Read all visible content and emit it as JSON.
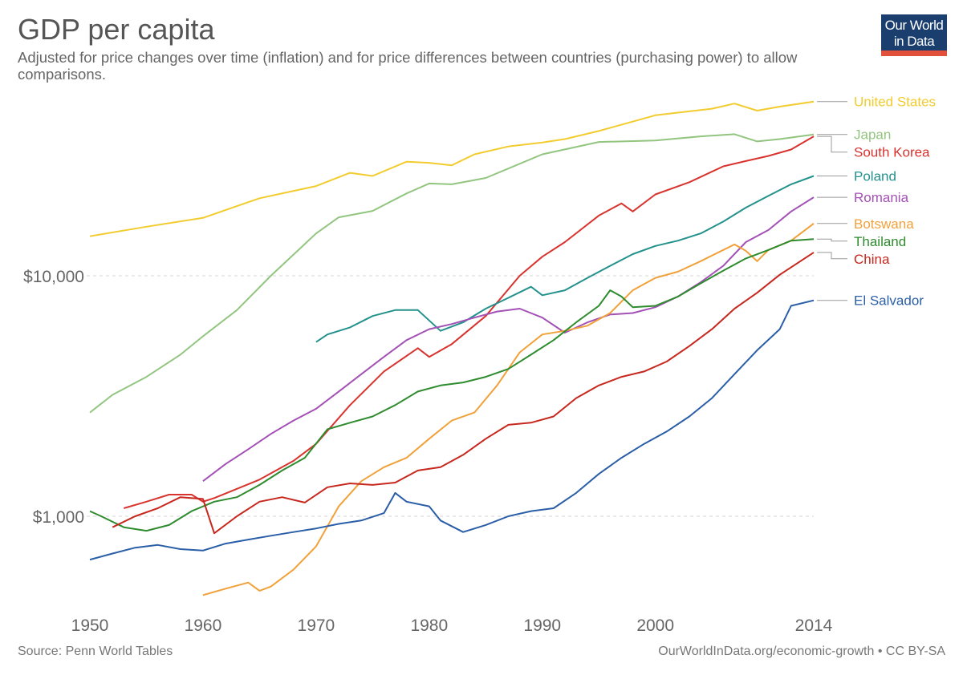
{
  "header": {
    "title": "GDP per capita",
    "subtitle": "Adjusted for price changes over time (inflation) and for price differences between countries (purchasing power) to allow comparisons."
  },
  "logo": {
    "line1": "Our World",
    "line2": "in Data",
    "bg_color": "#1a3e6e",
    "bar_color": "#e0503a"
  },
  "footer": {
    "source": "Source: Penn World Tables",
    "credit": "OurWorldInData.org/economic-growth • CC BY-SA"
  },
  "chart_data": {
    "type": "line",
    "title": "GDP per capita",
    "xlabel": "",
    "ylabel": "",
    "y_scale": "log",
    "xlim": [
      1950,
      2014
    ],
    "ylim": [
      470,
      50000
    ],
    "x_ticks": [
      1950,
      1960,
      1970,
      1980,
      1990,
      2000,
      2014
    ],
    "y_ticks": [
      {
        "value": 1000,
        "label": "$1,000"
      },
      {
        "value": 10000,
        "label": "$10,000"
      }
    ],
    "grid": "horizontal dashed",
    "legend": "right end labels",
    "series": [
      {
        "name": "United States",
        "color": "#f2cc2e",
        "points": [
          [
            1950,
            14600
          ],
          [
            1955,
            16000
          ],
          [
            1960,
            17400
          ],
          [
            1965,
            21000
          ],
          [
            1970,
            23600
          ],
          [
            1973,
            26800
          ],
          [
            1975,
            26000
          ],
          [
            1978,
            29800
          ],
          [
            1980,
            29500
          ],
          [
            1982,
            28800
          ],
          [
            1984,
            32000
          ],
          [
            1987,
            34500
          ],
          [
            1990,
            35800
          ],
          [
            1992,
            37000
          ],
          [
            1995,
            40000
          ],
          [
            2000,
            46500
          ],
          [
            2005,
            49500
          ],
          [
            2007,
            52000
          ],
          [
            2009,
            48600
          ],
          [
            2011,
            50500
          ],
          [
            2014,
            53000
          ]
        ]
      },
      {
        "name": "Japan",
        "color": "#92c57f",
        "points": [
          [
            1950,
            2700
          ],
          [
            1952,
            3200
          ],
          [
            1955,
            3800
          ],
          [
            1958,
            4700
          ],
          [
            1960,
            5600
          ],
          [
            1963,
            7200
          ],
          [
            1966,
            10000
          ],
          [
            1970,
            15000
          ],
          [
            1972,
            17500
          ],
          [
            1975,
            18600
          ],
          [
            1978,
            22000
          ],
          [
            1980,
            24200
          ],
          [
            1982,
            24000
          ],
          [
            1985,
            25500
          ],
          [
            1990,
            32000
          ],
          [
            1995,
            36000
          ],
          [
            2000,
            36500
          ],
          [
            2004,
            38000
          ],
          [
            2007,
            38800
          ],
          [
            2009,
            36200
          ],
          [
            2011,
            37000
          ],
          [
            2014,
            38700
          ]
        ]
      },
      {
        "name": "South Korea",
        "color": "#d9332e",
        "points": [
          [
            1953,
            1080
          ],
          [
            1955,
            1150
          ],
          [
            1957,
            1230
          ],
          [
            1959,
            1230
          ],
          [
            1960,
            1150
          ],
          [
            1961,
            1190
          ],
          [
            1963,
            1300
          ],
          [
            1965,
            1420
          ],
          [
            1968,
            1700
          ],
          [
            1970,
            2000
          ],
          [
            1973,
            2900
          ],
          [
            1976,
            4000
          ],
          [
            1979,
            5000
          ],
          [
            1980,
            4600
          ],
          [
            1982,
            5200
          ],
          [
            1985,
            6800
          ],
          [
            1988,
            10000
          ],
          [
            1990,
            12000
          ],
          [
            1992,
            13800
          ],
          [
            1995,
            17800
          ],
          [
            1997,
            20000
          ],
          [
            1998,
            18500
          ],
          [
            2000,
            21800
          ],
          [
            2003,
            24500
          ],
          [
            2006,
            28500
          ],
          [
            2008,
            30000
          ],
          [
            2010,
            31500
          ],
          [
            2012,
            33500
          ],
          [
            2014,
            38000
          ]
        ]
      },
      {
        "name": "Poland",
        "color": "#23918c",
        "points": [
          [
            1970,
            5300
          ],
          [
            1971,
            5700
          ],
          [
            1973,
            6100
          ],
          [
            1975,
            6800
          ],
          [
            1977,
            7200
          ],
          [
            1979,
            7200
          ],
          [
            1981,
            5900
          ],
          [
            1983,
            6400
          ],
          [
            1985,
            7300
          ],
          [
            1987,
            8100
          ],
          [
            1989,
            9000
          ],
          [
            1990,
            8300
          ],
          [
            1992,
            8700
          ],
          [
            1994,
            9800
          ],
          [
            1996,
            11000
          ],
          [
            1998,
            12300
          ],
          [
            2000,
            13300
          ],
          [
            2002,
            14000
          ],
          [
            2004,
            15000
          ],
          [
            2006,
            16800
          ],
          [
            2008,
            19200
          ],
          [
            2010,
            21500
          ],
          [
            2012,
            24000
          ],
          [
            2014,
            26000
          ]
        ]
      },
      {
        "name": "Romania",
        "color": "#a351b5",
        "points": [
          [
            1960,
            1400
          ],
          [
            1962,
            1650
          ],
          [
            1964,
            1900
          ],
          [
            1966,
            2200
          ],
          [
            1968,
            2500
          ],
          [
            1970,
            2800
          ],
          [
            1972,
            3300
          ],
          [
            1974,
            3900
          ],
          [
            1976,
            4600
          ],
          [
            1978,
            5400
          ],
          [
            1980,
            6000
          ],
          [
            1982,
            6300
          ],
          [
            1984,
            6700
          ],
          [
            1986,
            7100
          ],
          [
            1988,
            7300
          ],
          [
            1990,
            6700
          ],
          [
            1992,
            5800
          ],
          [
            1994,
            6400
          ],
          [
            1996,
            6900
          ],
          [
            1998,
            7000
          ],
          [
            2000,
            7400
          ],
          [
            2002,
            8200
          ],
          [
            2004,
            9400
          ],
          [
            2006,
            11000
          ],
          [
            2008,
            13800
          ],
          [
            2010,
            15500
          ],
          [
            2012,
            18500
          ],
          [
            2014,
            21200
          ]
        ]
      },
      {
        "name": "Botswana",
        "color": "#f1a13a",
        "points": [
          [
            1960,
            470
          ],
          [
            1962,
            500
          ],
          [
            1964,
            530
          ],
          [
            1965,
            490
          ],
          [
            1966,
            510
          ],
          [
            1968,
            600
          ],
          [
            1970,
            750
          ],
          [
            1972,
            1100
          ],
          [
            1974,
            1400
          ],
          [
            1976,
            1600
          ],
          [
            1978,
            1750
          ],
          [
            1980,
            2100
          ],
          [
            1982,
            2500
          ],
          [
            1984,
            2700
          ],
          [
            1986,
            3500
          ],
          [
            1988,
            4800
          ],
          [
            1990,
            5700
          ],
          [
            1992,
            5900
          ],
          [
            1994,
            6200
          ],
          [
            1996,
            7000
          ],
          [
            1998,
            8700
          ],
          [
            2000,
            9800
          ],
          [
            2002,
            10400
          ],
          [
            2004,
            11500
          ],
          [
            2006,
            12800
          ],
          [
            2007,
            13500
          ],
          [
            2008,
            12700
          ],
          [
            2009,
            11500
          ],
          [
            2010,
            12800
          ],
          [
            2012,
            14000
          ],
          [
            2014,
            16500
          ]
        ]
      },
      {
        "name": "Thailand",
        "color": "#2e8b2e",
        "points": [
          [
            1950,
            1050
          ],
          [
            1951,
            1000
          ],
          [
            1953,
            900
          ],
          [
            1955,
            870
          ],
          [
            1957,
            920
          ],
          [
            1959,
            1050
          ],
          [
            1961,
            1150
          ],
          [
            1963,
            1200
          ],
          [
            1965,
            1350
          ],
          [
            1967,
            1550
          ],
          [
            1969,
            1750
          ],
          [
            1971,
            2300
          ],
          [
            1973,
            2450
          ],
          [
            1975,
            2600
          ],
          [
            1977,
            2900
          ],
          [
            1979,
            3300
          ],
          [
            1981,
            3500
          ],
          [
            1983,
            3600
          ],
          [
            1985,
            3800
          ],
          [
            1987,
            4100
          ],
          [
            1989,
            4700
          ],
          [
            1991,
            5400
          ],
          [
            1993,
            6400
          ],
          [
            1995,
            7500
          ],
          [
            1996,
            8700
          ],
          [
            1997,
            8200
          ],
          [
            1998,
            7400
          ],
          [
            2000,
            7500
          ],
          [
            2002,
            8200
          ],
          [
            2004,
            9300
          ],
          [
            2006,
            10500
          ],
          [
            2008,
            11800
          ],
          [
            2010,
            12800
          ],
          [
            2012,
            14000
          ],
          [
            2014,
            14200
          ]
        ]
      },
      {
        "name": "China",
        "color": "#c7271d",
        "points": [
          [
            1952,
            900
          ],
          [
            1954,
            1000
          ],
          [
            1956,
            1080
          ],
          [
            1958,
            1200
          ],
          [
            1960,
            1180
          ],
          [
            1961,
            850
          ],
          [
            1963,
            1000
          ],
          [
            1965,
            1150
          ],
          [
            1967,
            1200
          ],
          [
            1969,
            1140
          ],
          [
            1971,
            1320
          ],
          [
            1973,
            1370
          ],
          [
            1975,
            1350
          ],
          [
            1977,
            1380
          ],
          [
            1979,
            1550
          ],
          [
            1981,
            1600
          ],
          [
            1983,
            1800
          ],
          [
            1985,
            2100
          ],
          [
            1987,
            2400
          ],
          [
            1989,
            2450
          ],
          [
            1991,
            2600
          ],
          [
            1993,
            3100
          ],
          [
            1995,
            3500
          ],
          [
            1997,
            3800
          ],
          [
            1999,
            4000
          ],
          [
            2001,
            4400
          ],
          [
            2003,
            5100
          ],
          [
            2005,
            6000
          ],
          [
            2007,
            7300
          ],
          [
            2009,
            8500
          ],
          [
            2011,
            10100
          ],
          [
            2014,
            12500
          ]
        ]
      },
      {
        "name": "El Salvador",
        "color": "#2a5ea7",
        "points": [
          [
            1950,
            660
          ],
          [
            1952,
            700
          ],
          [
            1954,
            740
          ],
          [
            1956,
            760
          ],
          [
            1958,
            730
          ],
          [
            1960,
            720
          ],
          [
            1962,
            770
          ],
          [
            1964,
            800
          ],
          [
            1966,
            830
          ],
          [
            1968,
            860
          ],
          [
            1970,
            890
          ],
          [
            1972,
            930
          ],
          [
            1974,
            960
          ],
          [
            1976,
            1030
          ],
          [
            1977,
            1250
          ],
          [
            1978,
            1150
          ],
          [
            1980,
            1100
          ],
          [
            1981,
            960
          ],
          [
            1983,
            860
          ],
          [
            1985,
            920
          ],
          [
            1987,
            1000
          ],
          [
            1989,
            1050
          ],
          [
            1991,
            1080
          ],
          [
            1993,
            1250
          ],
          [
            1995,
            1500
          ],
          [
            1997,
            1750
          ],
          [
            1999,
            2000
          ],
          [
            2001,
            2250
          ],
          [
            2003,
            2600
          ],
          [
            2005,
            3100
          ],
          [
            2007,
            3900
          ],
          [
            2009,
            4900
          ],
          [
            2011,
            6000
          ],
          [
            2012,
            7500
          ],
          [
            2014,
            7900
          ]
        ]
      }
    ]
  }
}
